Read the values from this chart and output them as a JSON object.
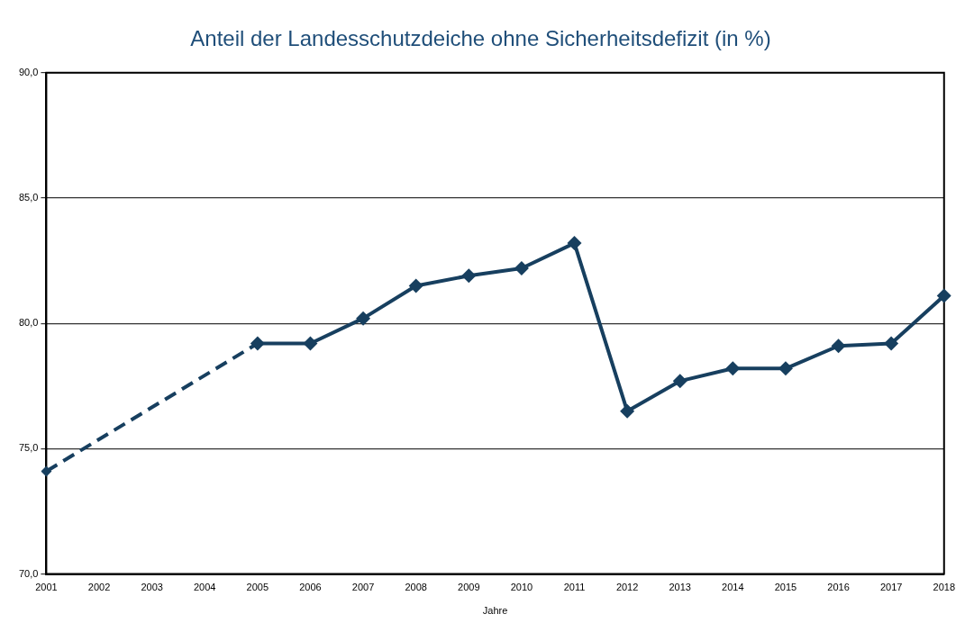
{
  "chart_data": {
    "type": "line",
    "title": "Anteil der Landesschutzdeiche ohne Sicherheitsdefizit (in %)",
    "xlabel": "Jahre",
    "categories": [
      "2001",
      "2002",
      "2003",
      "2004",
      "2005",
      "2006",
      "2007",
      "2008",
      "2009",
      "2010",
      "2011",
      "2012",
      "2013",
      "2014",
      "2015",
      "2016",
      "2017",
      "2018"
    ],
    "series": [
      {
        "color": "#173f5f",
        "line_style": "dashed",
        "values": [
          74.1,
          null,
          null,
          null,
          79.2,
          null,
          null,
          null,
          null,
          null,
          null,
          null,
          null,
          null,
          null,
          null,
          null,
          null
        ]
      },
      {
        "color": "#173f5f",
        "line_style": "solid",
        "values": [
          null,
          null,
          null,
          null,
          79.2,
          79.2,
          80.2,
          81.5,
          81.9,
          82.2,
          83.2,
          76.5,
          77.7,
          78.2,
          78.2,
          79.1,
          79.2,
          81.1
        ]
      }
    ],
    "ylim": [
      70,
      90
    ],
    "yticks": [
      {
        "value": 70,
        "label": "70,0"
      },
      {
        "value": 75,
        "label": "75,0"
      },
      {
        "value": 80,
        "label": "80,0"
      },
      {
        "value": 85,
        "label": "85,0"
      },
      {
        "value": 90,
        "label": "90,0"
      }
    ],
    "grid": "y",
    "legend": false,
    "marker": "diamond"
  }
}
